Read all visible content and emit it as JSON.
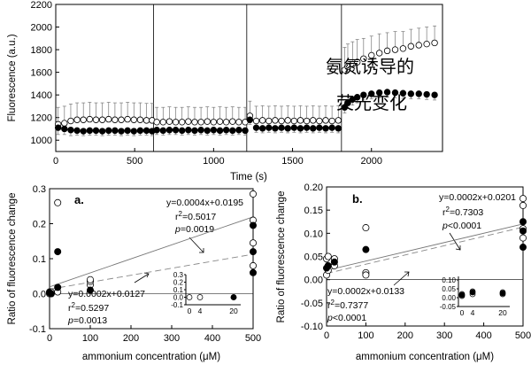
{
  "annotation_cn": [
    "氨氮诱导的",
    "荧光变化"
  ],
  "chart_data": [
    {
      "id": "time_course",
      "type": "line",
      "xlabel": "Time (s)",
      "ylabel": "Fluorescence (a.u.)",
      "xlim": [
        0,
        2450
      ],
      "ylim": [
        900,
        2200
      ],
      "xticks": [
        0,
        500,
        1000,
        1500,
        2000
      ],
      "yticks": [
        1000,
        1200,
        1400,
        1600,
        1800,
        2000,
        2200
      ],
      "vlines": [
        620,
        1210,
        1810
      ],
      "series": [
        {
          "style": "open_circle",
          "x": [
            15,
            55,
            95,
            135,
            175,
            215,
            255,
            295,
            335,
            375,
            415,
            455,
            495,
            535,
            575,
            610,
            640,
            680,
            720,
            760,
            800,
            840,
            880,
            920,
            960,
            1000,
            1040,
            1080,
            1120,
            1160,
            1200,
            1230,
            1270,
            1310,
            1350,
            1390,
            1430,
            1470,
            1510,
            1550,
            1590,
            1630,
            1670,
            1710,
            1750,
            1790,
            1830,
            1850,
            1880,
            1910,
            1950,
            2000,
            2050,
            2100,
            2150,
            2200,
            2250,
            2300,
            2350,
            2400
          ],
          "y": [
            1140,
            1150,
            1170,
            1180,
            1180,
            1185,
            1180,
            1180,
            1185,
            1180,
            1180,
            1185,
            1180,
            1180,
            1175,
            1175,
            1160,
            1160,
            1165,
            1160,
            1160,
            1165,
            1160,
            1160,
            1165,
            1160,
            1165,
            1160,
            1165,
            1160,
            1160,
            1215,
            1170,
            1175,
            1170,
            1175,
            1170,
            1175,
            1170,
            1175,
            1170,
            1175,
            1170,
            1175,
            1170,
            1175,
            1620,
            1650,
            1670,
            1690,
            1720,
            1750,
            1770,
            1790,
            1800,
            1810,
            1830,
            1840,
            1850,
            1860
          ],
          "err": [
            150,
            150,
            150,
            150,
            150,
            150,
            150,
            150,
            150,
            150,
            150,
            150,
            150,
            150,
            150,
            150,
            130,
            130,
            130,
            130,
            130,
            130,
            130,
            130,
            130,
            130,
            130,
            130,
            130,
            130,
            130,
            130,
            130,
            130,
            130,
            130,
            130,
            130,
            130,
            130,
            130,
            130,
            130,
            130,
            130,
            130,
            200,
            200,
            200,
            200,
            180,
            170,
            170,
            160,
            160,
            150,
            150,
            150,
            150,
            150
          ]
        },
        {
          "style": "filled_circle",
          "x": [
            15,
            55,
            95,
            135,
            175,
            215,
            255,
            295,
            335,
            375,
            415,
            455,
            495,
            535,
            575,
            610,
            640,
            680,
            720,
            760,
            800,
            840,
            880,
            920,
            960,
            1000,
            1040,
            1080,
            1120,
            1160,
            1200,
            1230,
            1270,
            1310,
            1350,
            1390,
            1430,
            1470,
            1510,
            1550,
            1590,
            1630,
            1670,
            1710,
            1750,
            1790,
            1830,
            1850,
            1880,
            1910,
            1950,
            2000,
            2050,
            2100,
            2150,
            2200,
            2250,
            2300,
            2350,
            2400
          ],
          "y": [
            1110,
            1100,
            1090,
            1085,
            1080,
            1085,
            1085,
            1080,
            1085,
            1085,
            1080,
            1085,
            1080,
            1085,
            1085,
            1080,
            1090,
            1085,
            1090,
            1090,
            1085,
            1090,
            1085,
            1090,
            1085,
            1090,
            1085,
            1090,
            1085,
            1090,
            1085,
            1180,
            1110,
            1105,
            1110,
            1105,
            1110,
            1105,
            1110,
            1105,
            1110,
            1105,
            1110,
            1105,
            1110,
            1105,
            1290,
            1330,
            1360,
            1380,
            1400,
            1410,
            1420,
            1425,
            1420,
            1415,
            1410,
            1410,
            1405,
            1400
          ],
          "err": [
            60,
            50,
            50,
            40,
            40,
            40,
            40,
            40,
            40,
            40,
            40,
            40,
            40,
            40,
            40,
            40,
            40,
            40,
            40,
            40,
            40,
            40,
            40,
            40,
            40,
            40,
            40,
            40,
            40,
            40,
            40,
            40,
            40,
            40,
            40,
            40,
            40,
            40,
            40,
            40,
            40,
            40,
            40,
            40,
            40,
            40,
            50,
            50,
            50,
            50,
            45,
            45,
            45,
            45,
            45,
            45,
            45,
            45,
            45,
            45
          ]
        }
      ]
    },
    {
      "id": "panel_a",
      "type": "scatter",
      "panel_label": "a.",
      "xlabel": "ammonium concentration (μM)",
      "ylabel": "Ratio of fluorescence change",
      "xlim": [
        0,
        500
      ],
      "ylim": [
        -0.1,
        0.3
      ],
      "xticks": [
        0,
        100,
        200,
        300,
        400,
        500
      ],
      "yticks": [
        -0.1,
        0.0,
        0.1,
        0.2,
        0.3
      ],
      "series": [
        {
          "style": "open_circle",
          "x": [
            0,
            0,
            4,
            4,
            20,
            20,
            100,
            100,
            100,
            500,
            500,
            500,
            500
          ],
          "y": [
            0.0,
            0.005,
            0.0,
            0.005,
            0.26,
            0.005,
            0.025,
            0.035,
            0.04,
            0.285,
            0.21,
            0.145,
            0.08
          ]
        },
        {
          "style": "filled_circle",
          "x": [
            0,
            4,
            20,
            20,
            100,
            500,
            500,
            500
          ],
          "y": [
            0.003,
            0.0,
            0.12,
            0.018,
            0.01,
            0.195,
            0.12,
            0.06
          ]
        }
      ],
      "fits": [
        {
          "style": "solid",
          "slope": 0.0004,
          "intercept": 0.0195,
          "equation": "y=0.0004x+0.0195",
          "r2_label": "r",
          "r2_sup": "2",
          "r2_value": "=0.5017",
          "p_label": "p",
          "p_value": "=0.0019"
        },
        {
          "style": "dashed",
          "slope": 0.0002,
          "intercept": 0.0127,
          "equation": "y=0.0002x+0.0127",
          "r2_label": "r",
          "r2_sup": "2",
          "r2_value": "=0.5297",
          "p_label": "p",
          "p_value": "=0.0013"
        }
      ],
      "inset": {
        "yticks_text": [
          "0.3",
          "0.2",
          "0.1",
          "0.0",
          "-0.1"
        ],
        "yticks": [
          0.3,
          0.2,
          0.1,
          0.0,
          -0.1
        ],
        "xticks_text": [
          "0",
          "4",
          "20"
        ],
        "ylim": [
          -0.1,
          0.3
        ],
        "open": [
          [
            0,
            0.0
          ],
          [
            4,
            0.0
          ],
          [
            20,
            0.0
          ]
        ],
        "filled": [
          [
            20,
            0.0
          ]
        ]
      }
    },
    {
      "id": "panel_b",
      "type": "scatter",
      "panel_label": "b.",
      "xlabel": "ammonium concentration (μM)",
      "ylabel": "Ratio of fluorescence change",
      "xlim": [
        0,
        500
      ],
      "ylim": [
        -0.1,
        0.2
      ],
      "xticks": [
        0,
        100,
        200,
        300,
        400,
        500
      ],
      "yticks": [
        -0.1,
        -0.05,
        0.0,
        0.05,
        0.1,
        0.15,
        0.2
      ],
      "series": [
        {
          "style": "open_circle",
          "x": [
            0,
            0,
            4,
            4,
            20,
            20,
            100,
            100,
            100,
            500,
            500,
            500,
            500
          ],
          "y": [
            0.045,
            0.01,
            0.05,
            0.02,
            0.045,
            0.03,
            0.112,
            0.015,
            0.01,
            0.175,
            0.16,
            0.11,
            0.09
          ]
        },
        {
          "style": "filled_circle",
          "x": [
            0,
            4,
            20,
            100,
            500,
            500,
            500
          ],
          "y": [
            0.025,
            0.03,
            0.038,
            0.065,
            0.125,
            0.105,
            0.07
          ]
        }
      ],
      "fits": [
        {
          "style": "solid",
          "slope": 0.0002,
          "intercept": 0.0201,
          "equation": "y=0.0002x+0.0201",
          "r2_label": "r",
          "r2_sup": "2",
          "r2_value": "=0.7303",
          "p_label": "p",
          "p_value": "<0.0001"
        },
        {
          "style": "dashed",
          "slope": 0.0002,
          "intercept": 0.0133,
          "equation": "y=0.0002x+0.0133",
          "r2_label": "r",
          "r2_sup": "2",
          "r2_value": "=0.7377",
          "p_label": "p",
          "p_value": "<0.0001"
        }
      ],
      "inset": {
        "yticks_text": [
          "0.10",
          "0.05",
          "0.00",
          "-0.05"
        ],
        "yticks": [
          0.1,
          0.05,
          0.0,
          -0.05
        ],
        "xticks_text": [
          "0",
          "4",
          "20"
        ],
        "ylim": [
          -0.05,
          0.12
        ],
        "open": [
          [
            0,
            0.01
          ],
          [
            0,
            0.02
          ],
          [
            4,
            0.02
          ],
          [
            4,
            0.035
          ],
          [
            20,
            0.02
          ],
          [
            20,
            0.03
          ]
        ],
        "filled": [
          [
            0,
            0.015
          ],
          [
            4,
            0.03
          ],
          [
            20,
            0.025
          ]
        ]
      }
    }
  ]
}
